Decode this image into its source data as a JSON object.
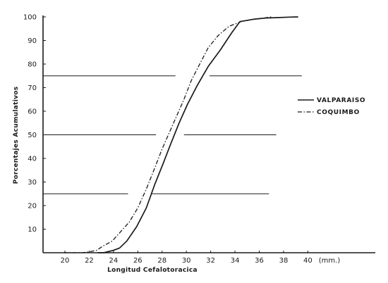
{
  "chart_data": {
    "type": "line",
    "xlabel": "Longitud Cefalotoracica",
    "ylabel": "Porcentajes Acumulativos",
    "x_unit_label": "(mm.)",
    "xlim": [
      18.2,
      40.5
    ],
    "ylim": [
      0,
      100
    ],
    "x_ticks": [
      "20",
      "22",
      "24",
      "26",
      "28",
      "30",
      "32",
      "34",
      "36",
      "38",
      "40"
    ],
    "y_ticks": [
      "10",
      "20",
      "30",
      "40",
      "50",
      "60",
      "70",
      "80",
      "90",
      "100"
    ],
    "grid": false,
    "legend_position": "right",
    "series": [
      {
        "name": "VALPARAISO",
        "line_style": "solid",
        "x": [
          22.7,
          23.2,
          24.0,
          24.5,
          25.1,
          25.9,
          26.7,
          27.4,
          28.1,
          28.7,
          29.4,
          30.1,
          30.9,
          31.8,
          32.8,
          33.7,
          34.4,
          35.5,
          36.5,
          37.5,
          38.5,
          39.2
        ],
        "y": [
          0,
          0,
          1,
          2,
          5,
          11,
          19,
          29,
          38,
          46,
          55,
          63,
          71,
          79,
          86,
          93,
          98,
          99,
          99.5,
          99.7,
          99.9,
          100
        ]
      },
      {
        "name": "COQUIMBO",
        "line_style": "dash-dot",
        "x": [
          19.9,
          20.6,
          21.4,
          22.0,
          22.6,
          23.2,
          23.9,
          24.6,
          25.3,
          26.0,
          26.7,
          27.4,
          28.0,
          28.6,
          29.2,
          29.8,
          30.4,
          31.1,
          31.8,
          32.6,
          33.5,
          34.5,
          35.5,
          36.5,
          37.0
        ],
        "y": [
          0,
          0,
          0,
          0.4,
          1,
          3,
          5,
          9,
          13,
          19,
          27,
          36,
          44,
          51,
          58,
          65,
          73,
          80,
          87,
          92,
          96,
          98,
          99,
          99.6,
          100
        ]
      }
    ],
    "reference_lines": [
      {
        "y": 75,
        "segments": [
          [
            18.2,
            29.1
          ],
          [
            31.9,
            39.5
          ]
        ]
      },
      {
        "y": 50,
        "segments": [
          [
            18.2,
            27.5
          ],
          [
            29.8,
            37.4
          ]
        ]
      },
      {
        "y": 25,
        "segments": [
          [
            18.2,
            25.2
          ],
          [
            27.1,
            36.8
          ]
        ]
      }
    ]
  },
  "colors": {
    "ink": "#1a1a1a",
    "background": "#ffffff"
  }
}
